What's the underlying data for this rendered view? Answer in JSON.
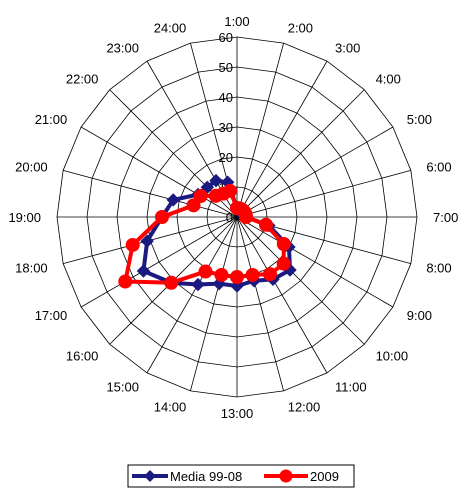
{
  "chart_data": {
    "type": "radar",
    "title": "",
    "categories": [
      "1:00",
      "2:00",
      "3:00",
      "4:00",
      "5:00",
      "6:00",
      "7:00",
      "8:00",
      "9:00",
      "10:00",
      "11:00",
      "12:00",
      "13:00",
      "14:00",
      "15:00",
      "16:00",
      "17:00",
      "18:00",
      "19:00",
      "20:00",
      "21:00",
      "22:00",
      "23:00",
      "24:00"
    ],
    "radial_ticks": [
      "0",
      "10",
      "20",
      "30",
      "40",
      "50",
      "60"
    ],
    "rlim": [
      0,
      60
    ],
    "grid": true,
    "legend_position": "bottom",
    "series": [
      {
        "name": "Media 99-08",
        "color": "#1a1a80",
        "values": [
          3,
          2,
          2,
          2,
          3,
          3,
          3,
          11,
          20,
          25,
          24,
          22,
          23,
          23,
          26,
          31,
          36,
          31,
          25,
          22,
          15,
          14,
          14,
          12
        ]
      },
      {
        "name": "2009",
        "color": "#ff0000",
        "values": [
          3,
          3,
          3,
          3,
          3,
          3,
          3,
          10,
          18,
          22,
          22,
          20,
          20,
          20,
          21,
          31,
          43,
          36,
          25,
          15,
          14,
          10,
          9,
          9
        ]
      }
    ]
  }
}
